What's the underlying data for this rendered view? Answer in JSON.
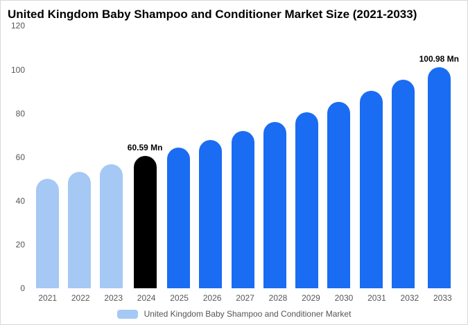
{
  "chart_data": {
    "type": "bar",
    "title": "United Kingdom Baby Shampoo and Conditioner Market Size (2021-2033)",
    "categories": [
      "2021",
      "2022",
      "2023",
      "2024",
      "2025",
      "2026",
      "2027",
      "2028",
      "2029",
      "2030",
      "2031",
      "2032",
      "2033"
    ],
    "values": [
      50.2,
      53.4,
      56.6,
      60.59,
      64.2,
      67.9,
      71.9,
      76.1,
      80.5,
      85.2,
      90.2,
      95.4,
      100.98
    ],
    "bar_colors": [
      "#a5c8f5",
      "#a5c8f5",
      "#a5c8f5",
      "#000000",
      "#1a6cf2",
      "#1a6cf2",
      "#1a6cf2",
      "#1a6cf2",
      "#1a6cf2",
      "#1a6cf2",
      "#1a6cf2",
      "#1a6cf2",
      "#1a6cf2"
    ],
    "data_labels": {
      "2024": "60.59 Mn",
      "2033": "100.98 Mn"
    },
    "xlabel": "",
    "ylabel": "",
    "ylim": [
      0,
      120
    ],
    "yticks": [
      0,
      20,
      40,
      60,
      80,
      100,
      120
    ],
    "grid": false,
    "legend": {
      "label": "United Kingdom Baby Shampoo and Conditioner Market",
      "swatch_color": "#a5c8f5",
      "position": "bottom"
    }
  }
}
